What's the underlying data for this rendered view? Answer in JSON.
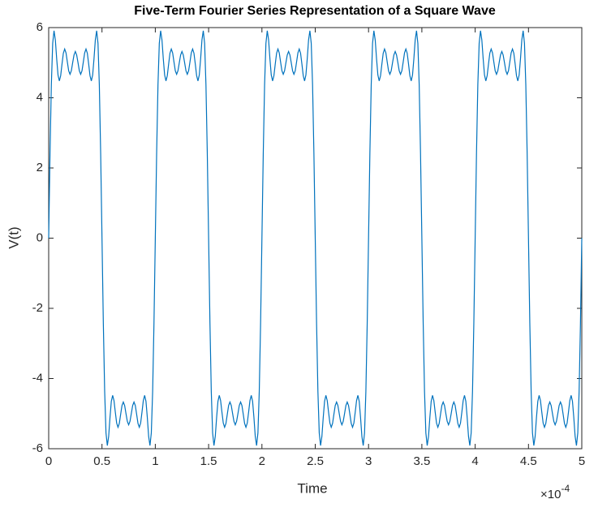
{
  "chart_data": {
    "type": "line",
    "title": "Five-Term Fourier Series Representation of a Square Wave",
    "x_label": "Time",
    "y_label": "V(t)",
    "x_multiplier": "×10",
    "x_multiplier_exponent": "-4",
    "color": "#0072bd",
    "xlim": [
      0,
      5
    ],
    "ylim": [
      -6,
      6
    ],
    "xticks": [
      0,
      0.5,
      1,
      1.5,
      2,
      2.5,
      3,
      3.5,
      4,
      4.5,
      5
    ],
    "yticks": [
      -6,
      -4,
      -2,
      0,
      2,
      4,
      6
    ],
    "x": [
      0,
      0.0125,
      0.025,
      0.0375,
      0.05,
      0.0625,
      0.075,
      0.0875,
      0.1,
      0.1125,
      0.125,
      0.1375,
      0.15,
      0.1625,
      0.175,
      0.1875,
      0.2,
      0.2125,
      0.225,
      0.2375,
      0.25,
      0.2625,
      0.275,
      0.2875,
      0.3,
      0.3125,
      0.325,
      0.3375,
      0.35,
      0.3625,
      0.375,
      0.3875,
      0.4,
      0.4125,
      0.425,
      0.4375,
      0.45,
      0.4625,
      0.475,
      0.4875,
      0.5,
      0.5125,
      0.525,
      0.5375,
      0.55,
      0.5625,
      0.575,
      0.5875,
      0.6,
      0.6125,
      0.625,
      0.6375,
      0.65,
      0.6625,
      0.675,
      0.6875,
      0.7,
      0.7125,
      0.725,
      0.7375,
      0.75,
      0.7625,
      0.775,
      0.7875,
      0.8,
      0.8125,
      0.825,
      0.8375,
      0.85,
      0.8625,
      0.875,
      0.8875,
      0.9,
      0.9125,
      0.925,
      0.9375,
      0.95,
      0.9625,
      0.975,
      0.9875,
      1,
      1.0125,
      1.025,
      1.0375,
      1.05,
      1.0625,
      1.075,
      1.0875,
      1.1,
      1.1125,
      1.125,
      1.1375,
      1.15,
      1.1625,
      1.175,
      1.1875,
      1.2,
      1.2125,
      1.225,
      1.2375,
      1.25,
      1.2625,
      1.275,
      1.2875,
      1.3,
      1.3125,
      1.325,
      1.3375,
      1.35,
      1.3625,
      1.375,
      1.3875,
      1.4,
      1.4125,
      1.425,
      1.4375,
      1.45,
      1.4625,
      1.475,
      1.4875,
      1.5,
      1.5125,
      1.525,
      1.5375,
      1.55,
      1.5625,
      1.575,
      1.5875,
      1.6,
      1.6125,
      1.625,
      1.6375,
      1.65,
      1.6625,
      1.675,
      1.6875,
      1.7,
      1.7125,
      1.725,
      1.7375,
      1.75,
      1.7625,
      1.775,
      1.7875,
      1.8,
      1.8125,
      1.825,
      1.8375,
      1.85,
      1.8625,
      1.875,
      1.8875,
      1.9,
      1.9125,
      1.925,
      1.9375,
      1.95,
      1.9625,
      1.975,
      1.9875,
      2,
      2.0125,
      2.025,
      2.0375,
      2.05,
      2.0625,
      2.075,
      2.0875,
      2.1,
      2.1125,
      2.125,
      2.1375,
      2.15,
      2.1625,
      2.175,
      2.1875,
      2.2,
      2.2125,
      2.225,
      2.2375,
      2.25,
      2.2625,
      2.275,
      2.2875,
      2.3,
      2.3125,
      2.325,
      2.3375,
      2.35,
      2.3625,
      2.375,
      2.3875,
      2.4,
      2.4125,
      2.425,
      2.4375,
      2.45,
      2.4625,
      2.475,
      2.4875,
      2.5,
      2.5125,
      2.525,
      2.5375,
      2.55,
      2.5625,
      2.575,
      2.5875,
      2.6,
      2.6125,
      2.625,
      2.6375,
      2.65,
      2.6625,
      2.675,
      2.6875,
      2.7,
      2.7125,
      2.725,
      2.7375,
      2.75,
      2.7625,
      2.775,
      2.7875,
      2.8,
      2.8125,
      2.825,
      2.8375,
      2.85,
      2.8625,
      2.875,
      2.8875,
      2.9,
      2.9125,
      2.925,
      2.9375,
      2.95,
      2.9625,
      2.975,
      2.9875,
      3,
      3.0125,
      3.025,
      3.0375,
      3.05,
      3.0625,
      3.075,
      3.0875,
      3.1,
      3.1125,
      3.125,
      3.1375,
      3.15,
      3.1625,
      3.175,
      3.1875,
      3.2,
      3.2125,
      3.225,
      3.2375,
      3.25,
      3.2625,
      3.275,
      3.2875,
      3.3,
      3.3125,
      3.325,
      3.3375,
      3.35,
      3.3625,
      3.375,
      3.3875,
      3.4,
      3.4125,
      3.425,
      3.4375,
      3.45,
      3.4625,
      3.475,
      3.4875,
      3.5,
      3.5125,
      3.525,
      3.5375,
      3.55,
      3.5625,
      3.575,
      3.5875,
      3.6,
      3.6125,
      3.625,
      3.6375,
      3.65,
      3.6625,
      3.675,
      3.6875,
      3.7,
      3.7125,
      3.725,
      3.7375,
      3.75,
      3.7625,
      3.775,
      3.7875,
      3.8,
      3.8125,
      3.825,
      3.8375,
      3.85,
      3.8625,
      3.875,
      3.8875,
      3.9,
      3.9125,
      3.925,
      3.9375,
      3.95,
      3.9625,
      3.975,
      3.9875,
      4,
      4.0125,
      4.025,
      4.0375,
      4.05,
      4.0625,
      4.075,
      4.0875,
      4.1,
      4.1125,
      4.125,
      4.1375,
      4.15,
      4.1625,
      4.175,
      4.1875,
      4.2,
      4.2125,
      4.225,
      4.2375,
      4.25,
      4.2625,
      4.275,
      4.2875,
      4.3,
      4.3125,
      4.325,
      4.3375,
      4.35,
      4.3625,
      4.375,
      4.3875,
      4.4,
      4.4125,
      4.425,
      4.4375,
      4.45,
      4.4625,
      4.475,
      4.4875,
      4.5,
      4.5125,
      4.525,
      4.5375,
      4.55,
      4.5625,
      4.575,
      4.5875,
      4.6,
      4.6125,
      4.625,
      4.6375,
      4.65,
      4.6625,
      4.675,
      4.6875,
      4.7,
      4.7125,
      4.725,
      4.7375,
      4.75,
      4.7625,
      4.775,
      4.7875,
      4.8,
      4.8125,
      4.825,
      4.8375,
      4.85,
      4.8625,
      4.875,
      4.8875,
      4.9,
      4.9125,
      4.925,
      4.9375,
      4.95,
      4.9625,
      4.975,
      4.9875,
      5
    ],
    "values": [
      0,
      2.42,
      4.37,
      5.55,
      5.91,
      5.65,
      5.11,
      4.65,
      4.48,
      4.63,
      4.96,
      5.27,
      5.39,
      5.28,
      5.02,
      4.77,
      4.67,
      4.77,
      5,
      5.22,
      5.32,
      5.22,
      5,
      4.77,
      4.67,
      4.77,
      5.02,
      5.28,
      5.39,
      5.27,
      4.96,
      4.63,
      4.48,
      4.65,
      5.11,
      5.65,
      5.91,
      5.55,
      4.37,
      2.42,
      0,
      -2.42,
      -4.37,
      -5.55,
      -5.91,
      -5.65,
      -5.11,
      -4.65,
      -4.48,
      -4.63,
      -4.96,
      -5.27,
      -5.39,
      -5.28,
      -5.02,
      -4.77,
      -4.67,
      -4.77,
      -5,
      -5.22,
      -5.32,
      -5.22,
      -5,
      -4.77,
      -4.67,
      -4.77,
      -5.02,
      -5.28,
      -5.39,
      -5.27,
      -4.96,
      -4.63,
      -4.48,
      -4.65,
      -5.11,
      -5.65,
      -5.91,
      -5.55,
      -4.37,
      -2.42,
      0,
      2.42,
      4.37,
      5.55,
      5.91,
      5.65,
      5.11,
      4.65,
      4.48,
      4.63,
      4.96,
      5.27,
      5.39,
      5.28,
      5.02,
      4.77,
      4.67,
      4.77,
      5,
      5.22,
      5.32,
      5.22,
      5,
      4.77,
      4.67,
      4.77,
      5.02,
      5.28,
      5.39,
      5.27,
      4.96,
      4.63,
      4.48,
      4.65,
      5.11,
      5.65,
      5.91,
      5.55,
      4.37,
      2.42,
      0,
      -2.42,
      -4.37,
      -5.55,
      -5.91,
      -5.65,
      -5.11,
      -4.65,
      -4.48,
      -4.63,
      -4.96,
      -5.27,
      -5.39,
      -5.28,
      -5.02,
      -4.77,
      -4.67,
      -4.77,
      -5,
      -5.22,
      -5.32,
      -5.22,
      -5,
      -4.77,
      -4.67,
      -4.77,
      -5.02,
      -5.28,
      -5.39,
      -5.27,
      -4.96,
      -4.63,
      -4.48,
      -4.65,
      -5.11,
      -5.65,
      -5.91,
      -5.55,
      -4.37,
      -2.42,
      0,
      2.42,
      4.37,
      5.55,
      5.91,
      5.65,
      5.11,
      4.65,
      4.48,
      4.63,
      4.96,
      5.27,
      5.39,
      5.28,
      5.02,
      4.77,
      4.67,
      4.77,
      5,
      5.22,
      5.32,
      5.22,
      5,
      4.77,
      4.67,
      4.77,
      5.02,
      5.28,
      5.39,
      5.27,
      4.96,
      4.63,
      4.48,
      4.65,
      5.11,
      5.65,
      5.91,
      5.55,
      4.37,
      2.42,
      0,
      -2.42,
      -4.37,
      -5.55,
      -5.91,
      -5.65,
      -5.11,
      -4.65,
      -4.48,
      -4.63,
      -4.96,
      -5.27,
      -5.39,
      -5.28,
      -5.02,
      -4.77,
      -4.67,
      -4.77,
      -5,
      -5.22,
      -5.32,
      -5.22,
      -5,
      -4.77,
      -4.67,
      -4.77,
      -5.02,
      -5.28,
      -5.39,
      -5.27,
      -4.96,
      -4.63,
      -4.48,
      -4.65,
      -5.11,
      -5.65,
      -5.91,
      -5.55,
      -4.37,
      -2.42,
      0,
      2.42,
      4.37,
      5.55,
      5.91,
      5.65,
      5.11,
      4.65,
      4.48,
      4.63,
      4.96,
      5.27,
      5.39,
      5.28,
      5.02,
      4.77,
      4.67,
      4.77,
      5,
      5.22,
      5.32,
      5.22,
      5,
      4.77,
      4.67,
      4.77,
      5.02,
      5.28,
      5.39,
      5.27,
      4.96,
      4.63,
      4.48,
      4.65,
      5.11,
      5.65,
      5.91,
      5.55,
      4.37,
      2.42,
      0,
      -2.42,
      -4.37,
      -5.55,
      -5.91,
      -5.65,
      -5.11,
      -4.65,
      -4.48,
      -4.63,
      -4.96,
      -5.27,
      -5.39,
      -5.28,
      -5.02,
      -4.77,
      -4.67,
      -4.77,
      -5,
      -5.22,
      -5.32,
      -5.22,
      -5,
      -4.77,
      -4.67,
      -4.77,
      -5.02,
      -5.28,
      -5.39,
      -5.27,
      -4.96,
      -4.63,
      -4.48,
      -4.65,
      -5.11,
      -5.65,
      -5.91,
      -5.55,
      -4.37,
      -2.42,
      0,
      2.42,
      4.37,
      5.55,
      5.91,
      5.65,
      5.11,
      4.65,
      4.48,
      4.63,
      4.96,
      5.27,
      5.39,
      5.28,
      5.02,
      4.77,
      4.67,
      4.77,
      5,
      5.22,
      5.32,
      5.22,
      5,
      4.77,
      4.67,
      4.77,
      5.02,
      5.28,
      5.39,
      5.27,
      4.96,
      4.63,
      4.48,
      4.65,
      5.11,
      5.65,
      5.91,
      5.55,
      4.37,
      2.42,
      0,
      -2.42,
      -4.37,
      -5.55,
      -5.91,
      -5.65,
      -5.11,
      -4.65,
      -4.48,
      -4.63,
      -4.96,
      -5.27,
      -5.39,
      -5.28,
      -5.02,
      -4.77,
      -4.67,
      -4.77,
      -5,
      -5.22,
      -5.32,
      -5.22,
      -5,
      -4.77,
      -4.67,
      -4.77,
      -5.02,
      -5.28,
      -5.39,
      -5.27,
      -4.96,
      -4.63,
      -4.48,
      -4.65,
      -5.11,
      -5.65,
      -5.91,
      -5.55,
      -4.37,
      -2.42,
      0
    ]
  }
}
